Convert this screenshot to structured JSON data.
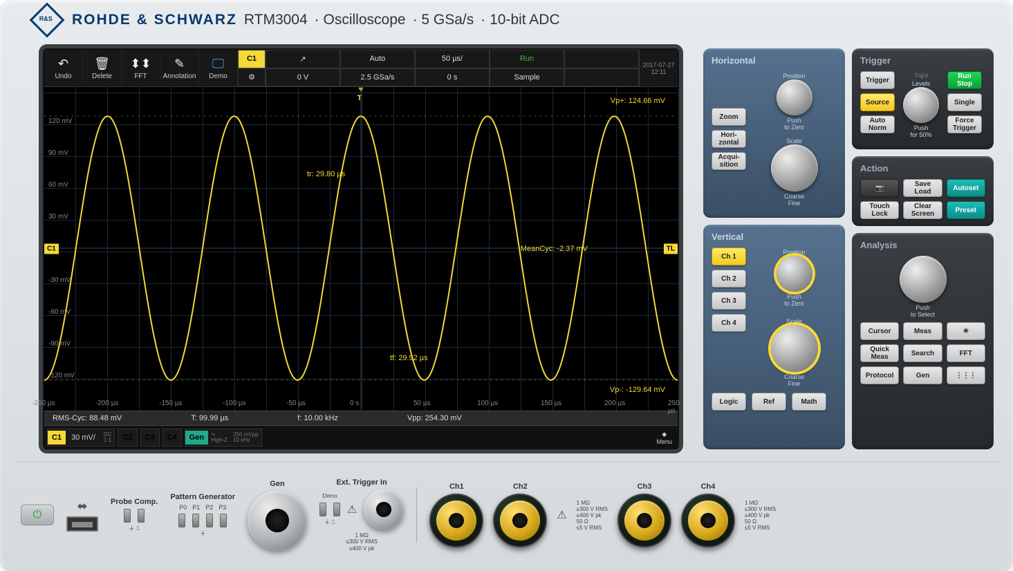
{
  "brand": "ROHDE & SCHWARZ",
  "model": "RTM3004",
  "device_type": "Oscilloscope",
  "sample_rate": "5 GSa/s",
  "adc": "10-bit ADC",
  "timestamp": {
    "date": "2017-07-27",
    "time": "12:11"
  },
  "toolbar": [
    {
      "name": "undo",
      "label": "Undo",
      "icon": "↶"
    },
    {
      "name": "delete",
      "label": "Delete",
      "icon": "🗑"
    },
    {
      "name": "fft",
      "label": "FFT",
      "icon": "⬍⬍"
    },
    {
      "name": "annotation",
      "label": "Annotation",
      "icon": "✎"
    },
    {
      "name": "demo",
      "label": "Demo",
      "icon": "🖵"
    }
  ],
  "info_top": {
    "c1": "C1",
    "slope": "↗",
    "mode": "Auto",
    "timebase": "50 µs/",
    "state": "Run"
  },
  "info_bottom": {
    "gear": "⚙",
    "offset": "0 V",
    "srate": "2.5 GSa/s",
    "delay": "0 s",
    "acq": "Sample"
  },
  "waveform": {
    "color": "#f5d936",
    "amplitude_mv": 125,
    "offset_mv": -2.37,
    "freq_khz": 10,
    "period_us": 99.99,
    "vdiv_mv": 30,
    "hdiv_us": 50,
    "y_ticks": [
      {
        "mv": 120,
        "lbl": "120 mV"
      },
      {
        "mv": 90,
        "lbl": "90 mV"
      },
      {
        "mv": 60,
        "lbl": "60 mV"
      },
      {
        "mv": 30,
        "lbl": "30 mV"
      },
      {
        "mv": 0,
        "lbl": "0 V"
      },
      {
        "mv": -30,
        "lbl": "-30 mV"
      },
      {
        "mv": -60,
        "lbl": "-60 mV"
      },
      {
        "mv": -90,
        "lbl": "-90 mV"
      },
      {
        "mv": -120,
        "lbl": "-120 mV"
      }
    ],
    "x_ticks": [
      {
        "us": -250,
        "lbl": "-250 µs"
      },
      {
        "us": -200,
        "lbl": "-200 µs"
      },
      {
        "us": -150,
        "lbl": "-150 µs"
      },
      {
        "us": -100,
        "lbl": "-100 µs"
      },
      {
        "us": -50,
        "lbl": "-50 µs"
      },
      {
        "us": 0,
        "lbl": "0 s"
      },
      {
        "us": 50,
        "lbl": "50 µs"
      },
      {
        "us": 100,
        "lbl": "100 µs"
      },
      {
        "us": 150,
        "lbl": "150 µs"
      },
      {
        "us": 200,
        "lbl": "200 µs"
      },
      {
        "us": 250,
        "lbl": "250 µs"
      }
    ],
    "annotations": {
      "vp_plus": "Vp+: 124.66 mV",
      "vp_minus": "Vp-: -129.64 mV",
      "mean_cyc": "MeanCyc: -2.37 mV",
      "tr": "tr: 29.80 µs",
      "tf": "tf: 29.92 µs"
    }
  },
  "measurements": {
    "rms": "RMS-Cyc: 88.48 mV",
    "period": "T: 99.99 µs",
    "freq": "f: 10.00 kHz",
    "vpp": "Vpp: 254.30 mV"
  },
  "channels": [
    {
      "id": "C1",
      "scale": "30 mV/",
      "coupling": "DC",
      "ratio": "1:1",
      "active": true
    },
    {
      "id": "C2",
      "active": false
    },
    {
      "id": "C3",
      "active": false
    },
    {
      "id": "C4",
      "active": false
    }
  ],
  "gen_chip": {
    "id": "Gen",
    "wave": "∿",
    "imp": "High-Z",
    "amp": "250 mVpp",
    "freq": "10 kHz"
  },
  "menu_label": "Menu",
  "panels": {
    "horizontal": {
      "title": "Horizontal",
      "btns": [
        "Zoom",
        "Hori-\nzontal",
        "Acqui-\nsition"
      ],
      "knobs": [
        "Position",
        "Scale"
      ],
      "hint1": "Push\nto Zero",
      "hint2": "Coarse\nFine"
    },
    "vertical": {
      "title": "Vertical",
      "ch": [
        "Ch 1",
        "Ch 2",
        "Ch 3",
        "Ch 4"
      ],
      "bottom": [
        "Logic",
        "Ref",
        "Math"
      ],
      "knobs": [
        "Position",
        "Scale"
      ],
      "hint1": "Push\nto Zero",
      "hint2": "Coarse\nFine"
    },
    "trigger": {
      "title": "Trigger",
      "left": [
        "Trigger",
        "Source",
        "Auto\nNorm"
      ],
      "right": [
        "Run\nStop",
        "Single",
        "Force\nTrigger"
      ],
      "knob": "Levels",
      "led": "Trig'd",
      "hint": "Push\nfor 50%"
    },
    "action": {
      "title": "Action",
      "grid": [
        "📷",
        "Save\nLoad",
        "Autoset",
        "Touch\nLock",
        "Clear\nScreen",
        "Preset"
      ]
    },
    "analysis": {
      "title": "Analysis",
      "knob_hint": "Push\nto Select",
      "grid": [
        "Cursor",
        "Meas",
        "☀",
        "Quick\nMeas",
        "Search",
        "FFT",
        "Protocol",
        "Gen",
        "⋮⋮⋮"
      ]
    }
  },
  "front": {
    "probe_comp": "Probe Comp.",
    "pattern": "Pattern Generator",
    "pattern_pins": [
      "P0",
      "P1",
      "P2",
      "P3"
    ],
    "gen": "Gen",
    "ext": "Ext. Trigger In",
    "demo": "Demo",
    "spec1": "1 MΩ\n≤300 V RMS\n≤400 V pk",
    "spec_ch": "1 MΩ\n≤300 V RMS\n≤400 V pk\n50 Ω\n≤5 V RMS",
    "channels": [
      "Ch1",
      "Ch2",
      "Ch3",
      "Ch4"
    ]
  }
}
